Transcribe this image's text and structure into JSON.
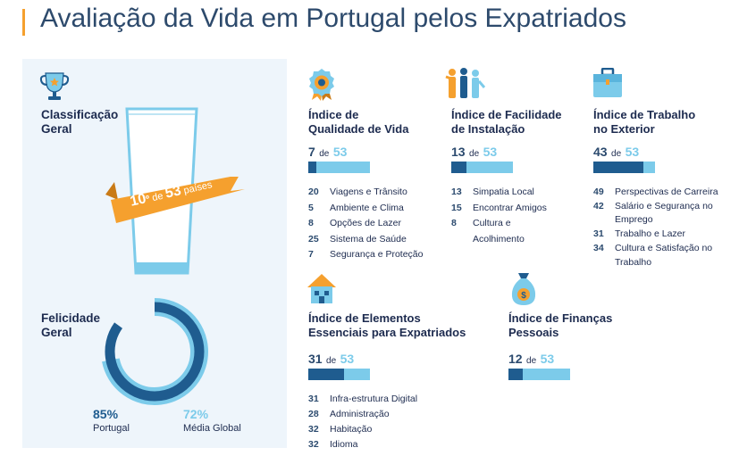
{
  "title": "Avaliação da Vida em Portugal pelos Expatriados",
  "colors": {
    "dark_blue": "#1f5c8f",
    "light_blue": "#7ccbea",
    "orange": "#f5a02e",
    "panel_bg": "#eef5fb"
  },
  "overall": {
    "heading_line1": "Classificação",
    "heading_line2": "Geral",
    "rank": "10",
    "rank_suffix": "º",
    "de": "de",
    "total": "53",
    "unit": "países"
  },
  "happiness": {
    "heading_line1": "Felicidade",
    "heading_line2": "Geral",
    "portugal_value": "85%",
    "portugal_label": "Portugal",
    "global_value": "72%",
    "global_label": "Média Global",
    "portugal_fraction": 0.85,
    "global_fraction": 0.72
  },
  "indices": {
    "quality": {
      "icon": "rosette-badge-icon",
      "title_line1": "Índice de",
      "title_line2": "Qualidade de Vida",
      "rank": "7",
      "de": "de",
      "total": "53",
      "fraction": 0.13,
      "items": [
        {
          "num": "20",
          "label": "Viagens e Trânsito"
        },
        {
          "num": "5",
          "label": "Ambiente e Clima"
        },
        {
          "num": "8",
          "label": "Opções de Lazer"
        },
        {
          "num": "25",
          "label": "Sistema de Saúde"
        },
        {
          "num": "7",
          "label": "Segurança e Proteção"
        }
      ]
    },
    "settling": {
      "icon": "people-icon",
      "title_line1": "Índice de Facilidade",
      "title_line2": "de Instalação",
      "rank": "13",
      "de": "de",
      "total": "53",
      "fraction": 0.25,
      "items": [
        {
          "num": "13",
          "label": "Simpatia Local"
        },
        {
          "num": "15",
          "label": "Encontrar Amigos"
        },
        {
          "num": "8",
          "label": "Cultura e"
        },
        {
          "num": "",
          "label": "Acolhimento"
        }
      ]
    },
    "work": {
      "icon": "briefcase-icon",
      "title_line1": "Índice de Trabalho",
      "title_line2": "no Exterior",
      "rank": "43",
      "de": "de",
      "total": "53",
      "fraction": 0.81,
      "items": [
        {
          "num": "49",
          "label": "Perspectivas de Carreira"
        },
        {
          "num": "42",
          "label": "Salário e Segurança no"
        },
        {
          "num": "",
          "label": "Emprego"
        },
        {
          "num": "31",
          "label": "Trabalho e Lazer"
        },
        {
          "num": "34",
          "label": "Cultura e Satisfação no"
        },
        {
          "num": "",
          "label": "Trabalho"
        }
      ]
    },
    "essentials": {
      "icon": "house-icon",
      "title_line1": "Índice de Elementos",
      "title_line2": "Essenciais para Expatriados",
      "rank": "31",
      "de": "de",
      "total": "53",
      "fraction": 0.58,
      "items": [
        {
          "num": "31",
          "label": "Infra-estrutura Digital"
        },
        {
          "num": "28",
          "label": "Administração"
        },
        {
          "num": "32",
          "label": "Habitação"
        },
        {
          "num": "32",
          "label": "Idioma"
        }
      ]
    },
    "finance": {
      "icon": "money-bag-icon",
      "title_line1": "Índice de Finanças",
      "title_line2": "Pessoais",
      "rank": "12",
      "de": "de",
      "total": "53",
      "fraction": 0.23,
      "items": []
    }
  }
}
